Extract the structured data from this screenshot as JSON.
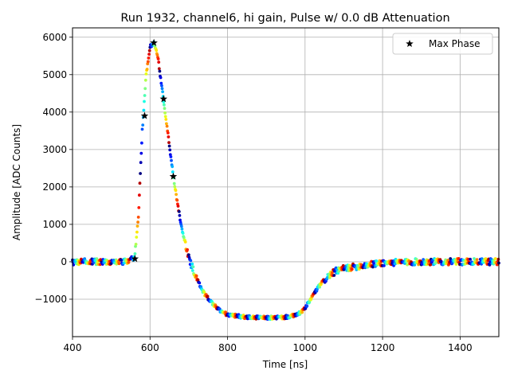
{
  "chart_data": {
    "type": "scatter",
    "title": "Run 1932, channel6, hi gain, Pulse w/ 0.0 dB Attenuation",
    "xlabel": "Time [ns]",
    "ylabel": "Amplitude [ADC Counts]",
    "xlim": [
      400,
      1500
    ],
    "ylim": [
      -2000,
      6250
    ],
    "xticks": [
      400,
      600,
      800,
      1000,
      1200,
      1400
    ],
    "yticks": [
      -1000,
      0,
      1000,
      2000,
      3000,
      4000,
      5000,
      6000
    ],
    "xtick_labels": [
      "400",
      "600",
      "800",
      "1000",
      "1200",
      "1400"
    ],
    "ytick_labels": [
      "−1000",
      "0",
      "1000",
      "2000",
      "3000",
      "4000",
      "5000",
      "6000"
    ],
    "grid": true,
    "legend": {
      "position": "top-right",
      "entries": [
        "Max Phase"
      ]
    },
    "pulse_waveform": {
      "description": "overlaid multi-phase samples colored by phase (jet colormap)",
      "t": [
        400,
        540,
        560,
        570,
        580,
        590,
        600,
        610,
        620,
        630,
        640,
        650,
        660,
        670,
        680,
        690,
        700,
        720,
        740,
        760,
        780,
        800,
        850,
        900,
        950,
        980,
        1000,
        1020,
        1040,
        1060,
        1080,
        1100,
        1150,
        1200,
        1300,
        1400,
        1500
      ],
      "amplitude": [
        0,
        0,
        80,
        1200,
        3500,
        5000,
        5750,
        5850,
        5500,
        4700,
        3900,
        3100,
        2300,
        1600,
        1000,
        500,
        100,
        -450,
        -850,
        -1100,
        -1300,
        -1420,
        -1480,
        -1500,
        -1480,
        -1420,
        -1250,
        -900,
        -600,
        -380,
        -250,
        -180,
        -100,
        -30,
        0,
        0,
        0
      ]
    },
    "series": [
      {
        "name": "Max Phase",
        "marker": "star",
        "x": [
          561,
          586,
          610,
          635,
          660
        ],
        "y": [
          80,
          3900,
          5850,
          4350,
          2280
        ]
      }
    ]
  }
}
